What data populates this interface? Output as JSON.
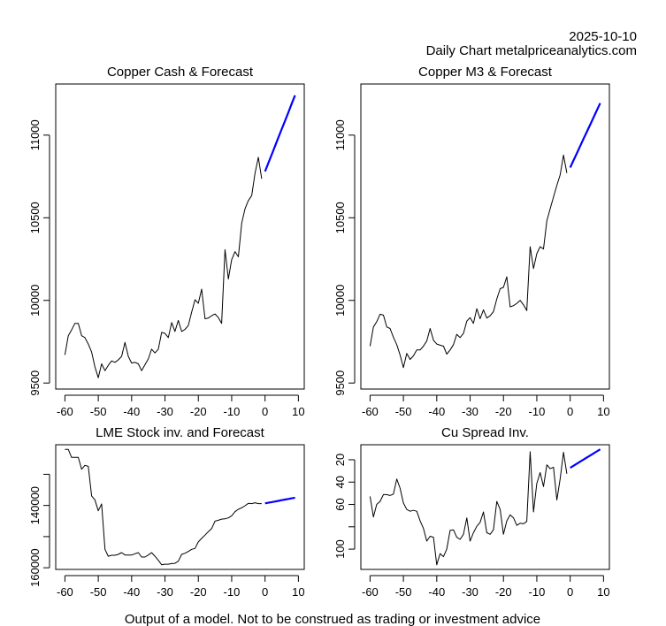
{
  "header": {
    "date": "2025-10-10",
    "source": "Daily Chart metalpriceanalytics.com"
  },
  "footer": {
    "disclaimer": "Output of a model. Not to be construed as trading or investment advice"
  },
  "colors": {
    "history": "#000000",
    "forecast": "#0000FF"
  },
  "chart_data": [
    {
      "type": "line",
      "title": "Copper Cash & Forecast",
      "xlabel": "",
      "ylabel": "",
      "reversed": false,
      "xlim": [
        -60,
        9
      ],
      "xticks": [
        -60,
        -50,
        -40,
        -30,
        -20,
        -10,
        0,
        10
      ],
      "xtick_labels": [
        "-60",
        "-50",
        "-40",
        "-30",
        "-20",
        "-10",
        "0",
        "10"
      ],
      "yticks": [
        9500,
        10000,
        10500,
        11000
      ],
      "ytick_labels": [
        "9500",
        "10000",
        "10500",
        "11000"
      ],
      "ylim": [
        9532,
        11241
      ],
      "series": [
        {
          "name": "history",
          "x_start": -60,
          "values": [
            9670,
            9786,
            9821,
            9861,
            9861,
            9786,
            9775,
            9736,
            9687,
            9598,
            9532,
            9616,
            9575,
            9607,
            9634,
            9625,
            9640,
            9661,
            9746,
            9661,
            9621,
            9625,
            9616,
            9575,
            9611,
            9646,
            9705,
            9682,
            9705,
            9807,
            9800,
            9775,
            9866,
            9812,
            9879,
            9812,
            9825,
            9848,
            9929,
            10004,
            9982,
            10068,
            9889,
            9893,
            9907,
            9918,
            9896,
            9861,
            10307,
            10129,
            10246,
            10295,
            10264,
            10468,
            10554,
            10604,
            10634,
            10768,
            10866,
            10736
          ]
        },
        {
          "name": "forecast",
          "x_start": 0,
          "values": [
            10780,
            10831,
            10882,
            10934,
            10985,
            11036,
            11087,
            11138,
            11190,
            11241
          ]
        }
      ]
    },
    {
      "type": "line",
      "title": "Copper M3 & Forecast",
      "xlabel": "",
      "ylabel": "",
      "reversed": false,
      "xlim": [
        -60,
        9
      ],
      "xticks": [
        -60,
        -50,
        -40,
        -30,
        -20,
        -10,
        0,
        10
      ],
      "xtick_labels": [
        "-60",
        "-50",
        "-40",
        "-30",
        "-20",
        "-10",
        "0",
        "10"
      ],
      "yticks": [
        9500,
        10000,
        10500,
        11000
      ],
      "ytick_labels": [
        "9500",
        "10000",
        "10500",
        "11000"
      ],
      "ylim": [
        9532,
        11241
      ],
      "series": [
        {
          "name": "history",
          "x_start": -60,
          "values": [
            9723,
            9839,
            9871,
            9916,
            9911,
            9839,
            9830,
            9777,
            9732,
            9670,
            9593,
            9679,
            9643,
            9664,
            9700,
            9700,
            9723,
            9754,
            9830,
            9759,
            9736,
            9729,
            9723,
            9675,
            9700,
            9732,
            9795,
            9775,
            9800,
            9875,
            9896,
            9861,
            9950,
            9889,
            9943,
            9893,
            9907,
            9932,
            10009,
            10071,
            10079,
            10143,
            9961,
            9968,
            9982,
            10000,
            9973,
            9938,
            10325,
            10193,
            10282,
            10325,
            10311,
            10482,
            10554,
            10625,
            10696,
            10759,
            10879,
            10771
          ]
        },
        {
          "name": "forecast",
          "x_start": 0,
          "values": [
            10804,
            10847,
            10890,
            10934,
            10977,
            11020,
            11063,
            11107,
            11150,
            11193
          ]
        }
      ]
    },
    {
      "type": "line",
      "title": "LME Stock inv. and Forecast",
      "xlabel": "",
      "ylabel": "",
      "reversed": true,
      "xlim": [
        -60,
        9
      ],
      "xticks": [
        -60,
        -50,
        -40,
        -30,
        -20,
        -10,
        0,
        10
      ],
      "xtick_labels": [
        "-60",
        "-50",
        "-40",
        "-30",
        "-20",
        "-10",
        "0",
        "10"
      ],
      "yticks": [
        130000,
        140000,
        150000,
        160000
      ],
      "ytick_labels": [
        "",
        "140000",
        "",
        "160000"
      ],
      "ylim": [
        122000,
        159050
      ],
      "series": [
        {
          "name": "history",
          "x_start": -60,
          "values": [
            122000,
            122000,
            124570,
            124570,
            124570,
            128380,
            127140,
            127430,
            136950,
            138190,
            141710,
            139520,
            154100,
            156290,
            156000,
            156000,
            155710,
            155140,
            155900,
            155900,
            155900,
            155520,
            155140,
            156570,
            156570,
            155900,
            155140,
            156290,
            157620,
            159050,
            158860,
            158860,
            158670,
            158570,
            157900,
            155710,
            155330,
            154760,
            154100,
            153810,
            151710,
            150570,
            149520,
            148380,
            147430,
            145050,
            144760,
            144380,
            144290,
            144000,
            143330,
            142000,
            141240,
            140760,
            140100,
            139330,
            139430,
            139140,
            139430,
            139430
          ]
        },
        {
          "name": "forecast",
          "x_start": 0,
          "values": [
            139330,
            139130,
            138930,
            138730,
            138530,
            138320,
            138120,
            137920,
            137720,
            137520
          ]
        }
      ]
    },
    {
      "type": "line",
      "title": "Cu Spread Inv.",
      "xlabel": "",
      "ylabel": "",
      "reversed": true,
      "xlim": [
        -60,
        9
      ],
      "xticks": [
        -60,
        -50,
        -40,
        -30,
        -20,
        -10,
        0,
        10
      ],
      "xtick_labels": [
        "-60",
        "-50",
        "-40",
        "-30",
        "-20",
        "-10",
        "0",
        "10"
      ],
      "yticks": [
        20,
        40,
        60,
        80,
        100
      ],
      "ytick_labels": [
        "20",
        "40",
        "60",
        "",
        "100"
      ],
      "ylim": [
        10.7,
        114
      ],
      "series": [
        {
          "name": "history",
          "x_start": -60,
          "values": [
            52.8,
            71.2,
            60,
            57.3,
            51.2,
            51.2,
            52,
            50.7,
            37.3,
            45.3,
            58.7,
            64.5,
            66.1,
            65.3,
            66.1,
            74.7,
            81.3,
            92.8,
            88.5,
            89.3,
            114,
            104,
            106.7,
            100,
            83.2,
            82.7,
            89.3,
            91.2,
            86.7,
            72,
            92.8,
            85.3,
            79.5,
            76,
            66.7,
            85.3,
            86.7,
            82.7,
            57.3,
            64.5,
            86.7,
            74.7,
            69.3,
            72,
            78.7,
            76.8,
            77.3,
            75.2,
            12.8,
            66.7,
            41.3,
            31.5,
            44,
            24.5,
            28,
            26.7,
            56,
            37.3,
            13.3,
            32.5
          ]
        },
        {
          "name": "forecast",
          "x_start": 0,
          "values": [
            27.2,
            25.4,
            23.5,
            21.7,
            19.9,
            18.0,
            16.2,
            14.3,
            12.5,
            10.7
          ]
        }
      ]
    }
  ]
}
